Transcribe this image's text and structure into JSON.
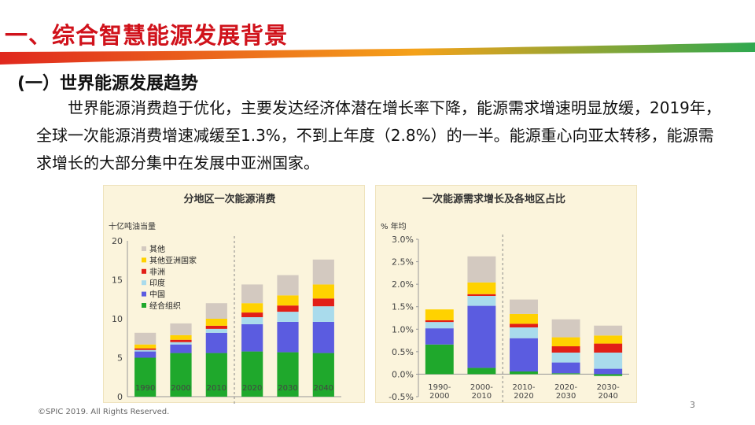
{
  "slide": {
    "title": "一、综合智慧能源发展背景",
    "section_title": "(一）世界能源发展趋势",
    "paragraph": "世界能源消费趋于优化，主要发达经济体潜在增长率下降，能源需求增速明显放缓，2019年，全球一次能源消费增速减缓至1.3%，不到上年度（2.8%）的一半。能源重心向亚太转移，能源需求增长的大部分集中在发展中亚洲国家。",
    "copyright": "©SPIC 2019. All Rights Reserved.",
    "page_number": "3"
  },
  "colors": {
    "title_red": "#d0121b",
    "band_red": "#e0281e",
    "band_orange": "#f5a21a",
    "band_green": "#2fa84f",
    "panel_bg": "#fbf4dc"
  },
  "chart_data": [
    {
      "type": "bar",
      "stacked": true,
      "title": "分地区一次能源消费",
      "ylabel": "十亿吨油当量",
      "ylim": [
        0,
        20
      ],
      "yticks": [
        "0",
        "5",
        "10",
        "15",
        "20"
      ],
      "categories": [
        "1990",
        "2000",
        "2010",
        "2020",
        "2030",
        "2040"
      ],
      "projection_starts_after": "2010",
      "legend_position": "top-left",
      "series": [
        {
          "name": "经合组织",
          "color": "#1fa82c",
          "values": [
            5.0,
            5.6,
            5.6,
            5.8,
            5.7,
            5.6
          ]
        },
        {
          "name": "中国",
          "color": "#5b5ce0",
          "values": [
            0.8,
            1.1,
            2.6,
            3.5,
            3.9,
            4.0
          ]
        },
        {
          "name": "印度",
          "color": "#a9dbec",
          "values": [
            0.2,
            0.3,
            0.5,
            0.9,
            1.3,
            2.0
          ]
        },
        {
          "name": "非洲",
          "color": "#e21f17",
          "values": [
            0.2,
            0.3,
            0.4,
            0.6,
            0.8,
            1.0
          ]
        },
        {
          "name": "其他亚洲国家",
          "color": "#ffd200",
          "values": [
            0.5,
            0.6,
            0.9,
            1.2,
            1.3,
            1.8
          ]
        },
        {
          "name": "其他",
          "color": "#d3c9c0",
          "values": [
            1.5,
            1.5,
            2.0,
            2.4,
            2.6,
            3.2
          ]
        }
      ]
    },
    {
      "type": "bar",
      "stacked": true,
      "title": "一次能源需求增长及各地区占比",
      "ylabel": "% 年均",
      "ylim": [
        -0.5,
        3.0
      ],
      "yticks": [
        "-0.5%",
        "0.0%",
        "0.5%",
        "1.0%",
        "1.5%",
        "2.0%",
        "2.5%",
        "3.0%"
      ],
      "categories": [
        [
          "1990-",
          "2000"
        ],
        [
          "2000-",
          "2010"
        ],
        [
          "2010-",
          "2020"
        ],
        [
          "2020-",
          "2030"
        ],
        [
          "2030-",
          "2040"
        ]
      ],
      "projection_starts_after": "2000-2010",
      "series": [
        {
          "name": "经合组织",
          "color": "#1fa82c",
          "values": [
            0.66,
            0.14,
            0.06,
            0.02,
            -0.04
          ]
        },
        {
          "name": "中国",
          "color": "#5b5ce0",
          "values": [
            0.36,
            1.38,
            0.74,
            0.24,
            0.12
          ]
        },
        {
          "name": "印度",
          "color": "#a9dbec",
          "values": [
            0.14,
            0.22,
            0.24,
            0.22,
            0.36
          ]
        },
        {
          "name": "非洲",
          "color": "#e21f17",
          "values": [
            0.04,
            0.04,
            0.08,
            0.14,
            0.2
          ]
        },
        {
          "name": "其他亚洲国家",
          "color": "#ffd200",
          "values": [
            0.24,
            0.26,
            0.22,
            0.2,
            0.18
          ]
        },
        {
          "name": "其他",
          "color": "#d3c9c0",
          "values": [
            0.0,
            0.58,
            0.32,
            0.4,
            0.22
          ]
        }
      ]
    }
  ]
}
